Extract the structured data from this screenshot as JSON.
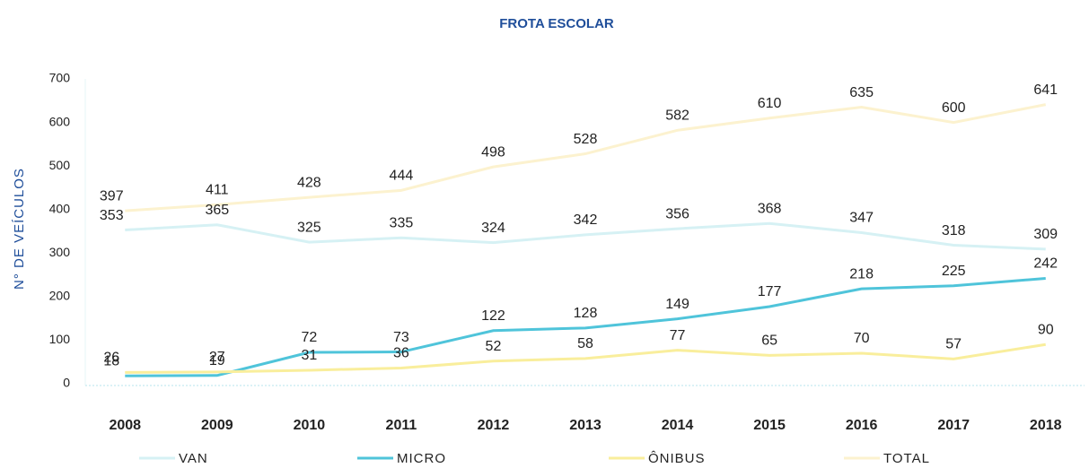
{
  "chart_data": {
    "type": "line",
    "title": "FROTA ESCOLAR",
    "y_label": "N° DE VEÍCULOS",
    "categories": [
      "2008",
      "2009",
      "2010",
      "2011",
      "2012",
      "2013",
      "2014",
      "2015",
      "2016",
      "2017",
      "2018"
    ],
    "series": [
      {
        "name": "VAN",
        "color": "#d6f1f4",
        "values": [
          353,
          365,
          325,
          335,
          324,
          342,
          356,
          368,
          347,
          318,
          309
        ]
      },
      {
        "name": "MICRO",
        "color": "#4fc4da",
        "values": [
          18,
          19,
          72,
          73,
          122,
          128,
          149,
          177,
          218,
          225,
          242
        ]
      },
      {
        "name": "ÔNIBUS",
        "color": "#f9ee9c",
        "values": [
          26,
          27,
          31,
          36,
          52,
          58,
          77,
          65,
          70,
          57,
          90
        ]
      },
      {
        "name": "TOTAL",
        "color": "#fcf2cf",
        "values": [
          397,
          411,
          428,
          444,
          498,
          528,
          582,
          610,
          635,
          600,
          641
        ]
      }
    ],
    "ylim": [
      0,
      700
    ],
    "yticks": [
      0,
      100,
      200,
      300,
      400,
      500,
      600,
      700
    ],
    "grid": false
  }
}
